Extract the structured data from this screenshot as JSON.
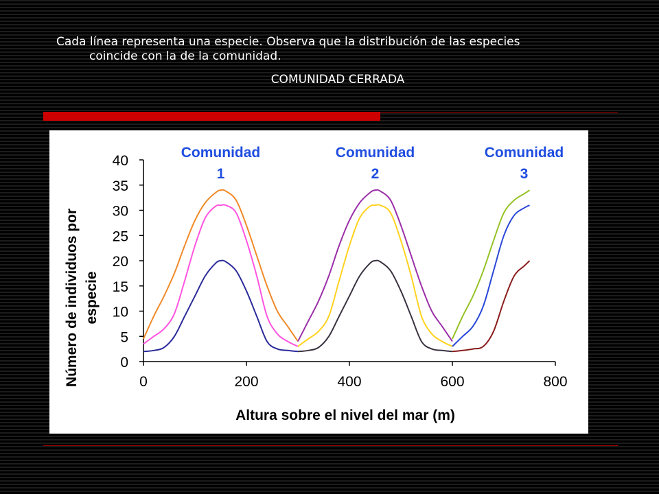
{
  "slide": {
    "caption_line1": "Cada línea representa una especie. Observa que la distribución de las especies",
    "caption_line2": "coincide con la de la comunidad.",
    "subtitle": "COMUNIDAD CERRADA"
  },
  "colors": {
    "red_bar": "#cc0000",
    "community_label": "#1f4de0"
  },
  "chart_data": {
    "type": "line",
    "xlabel": "Altura sobre el nivel del mar (m)",
    "ylabel_line1": "Número de individuos por",
    "ylabel_line2": "especie",
    "xlim": [
      0,
      800
    ],
    "ylim": [
      0,
      40
    ],
    "x_ticks": [
      "0",
      "200",
      "400",
      "600",
      "800"
    ],
    "y_ticks": [
      "0",
      "5",
      "10",
      "15",
      "20",
      "25",
      "30",
      "35",
      "40"
    ],
    "grid": false,
    "annotations": [
      {
        "word": "Comunidad",
        "number": "1",
        "x": 150
      },
      {
        "word": "Comunidad",
        "number": "2",
        "x": 450
      },
      {
        "word": "Comunidad",
        "number": "3",
        "x": 750
      }
    ],
    "series": [
      {
        "color": "#f08a28",
        "x": [
          0,
          20,
          40,
          60,
          80,
          100,
          120,
          140,
          150,
          160,
          180,
          200,
          220,
          240,
          260,
          280,
          300
        ],
        "values": [
          4.5,
          9,
          13,
          17.5,
          23,
          28,
          31.5,
          33.5,
          34,
          33.8,
          32,
          27,
          21,
          15,
          10,
          7,
          4
        ]
      },
      {
        "color": "#ff55e0",
        "x": [
          0,
          20,
          40,
          60,
          80,
          100,
          120,
          140,
          150,
          160,
          180,
          200,
          220,
          240,
          260,
          280,
          300
        ],
        "values": [
          3.5,
          5,
          6.5,
          9.5,
          16,
          23,
          28.5,
          30.8,
          31,
          31,
          29.5,
          24,
          17,
          9,
          5.5,
          4,
          3
        ]
      },
      {
        "color": "#2a2a9a",
        "x": [
          0,
          20,
          40,
          60,
          80,
          100,
          120,
          140,
          150,
          160,
          180,
          200,
          220,
          240,
          260,
          280,
          300
        ],
        "values": [
          2,
          2.2,
          2.8,
          5,
          9,
          13,
          17,
          19.5,
          20,
          19.8,
          18,
          14,
          9,
          4,
          2.5,
          2.2,
          2
        ]
      },
      {
        "color": "#9b2fa8",
        "x": [
          300,
          320,
          340,
          360,
          380,
          400,
          420,
          440,
          450,
          460,
          480,
          500,
          520,
          540,
          560,
          580,
          600
        ],
        "values": [
          4,
          8,
          12,
          17,
          23,
          28,
          31.5,
          33.5,
          34,
          33.8,
          32,
          27,
          21,
          15,
          10,
          7,
          4
        ]
      },
      {
        "color": "#ffd21f",
        "x": [
          300,
          320,
          340,
          360,
          380,
          400,
          420,
          440,
          450,
          460,
          480,
          500,
          520,
          540,
          560,
          580,
          600
        ],
        "values": [
          3,
          4.5,
          6,
          9,
          16,
          23,
          28.5,
          30.8,
          31,
          31,
          29.5,
          24,
          17,
          9,
          5.5,
          4,
          3
        ]
      },
      {
        "color": "#3a3240",
        "x": [
          300,
          320,
          340,
          360,
          380,
          400,
          420,
          440,
          450,
          460,
          480,
          500,
          520,
          540,
          560,
          580,
          600
        ],
        "values": [
          2,
          2.2,
          2.8,
          5,
          9,
          13,
          17,
          19.5,
          20,
          19.8,
          18,
          14,
          9,
          4,
          2.5,
          2.2,
          2
        ]
      },
      {
        "color": "#94c224",
        "x": [
          600,
          620,
          640,
          660,
          680,
          700,
          720,
          740,
          750
        ],
        "values": [
          4.5,
          9,
          13,
          18,
          24,
          29.5,
          32,
          33.3,
          34
        ]
      },
      {
        "color": "#2a48d8",
        "x": [
          600,
          620,
          640,
          660,
          680,
          700,
          720,
          740,
          750
        ],
        "values": [
          3,
          5,
          7,
          11,
          18,
          25,
          29,
          30.5,
          31
        ]
      },
      {
        "color": "#8a1c1c",
        "x": [
          600,
          620,
          640,
          660,
          680,
          700,
          720,
          740,
          750
        ],
        "values": [
          2,
          2.2,
          2.5,
          3,
          6,
          12,
          17,
          19,
          20
        ]
      }
    ]
  }
}
